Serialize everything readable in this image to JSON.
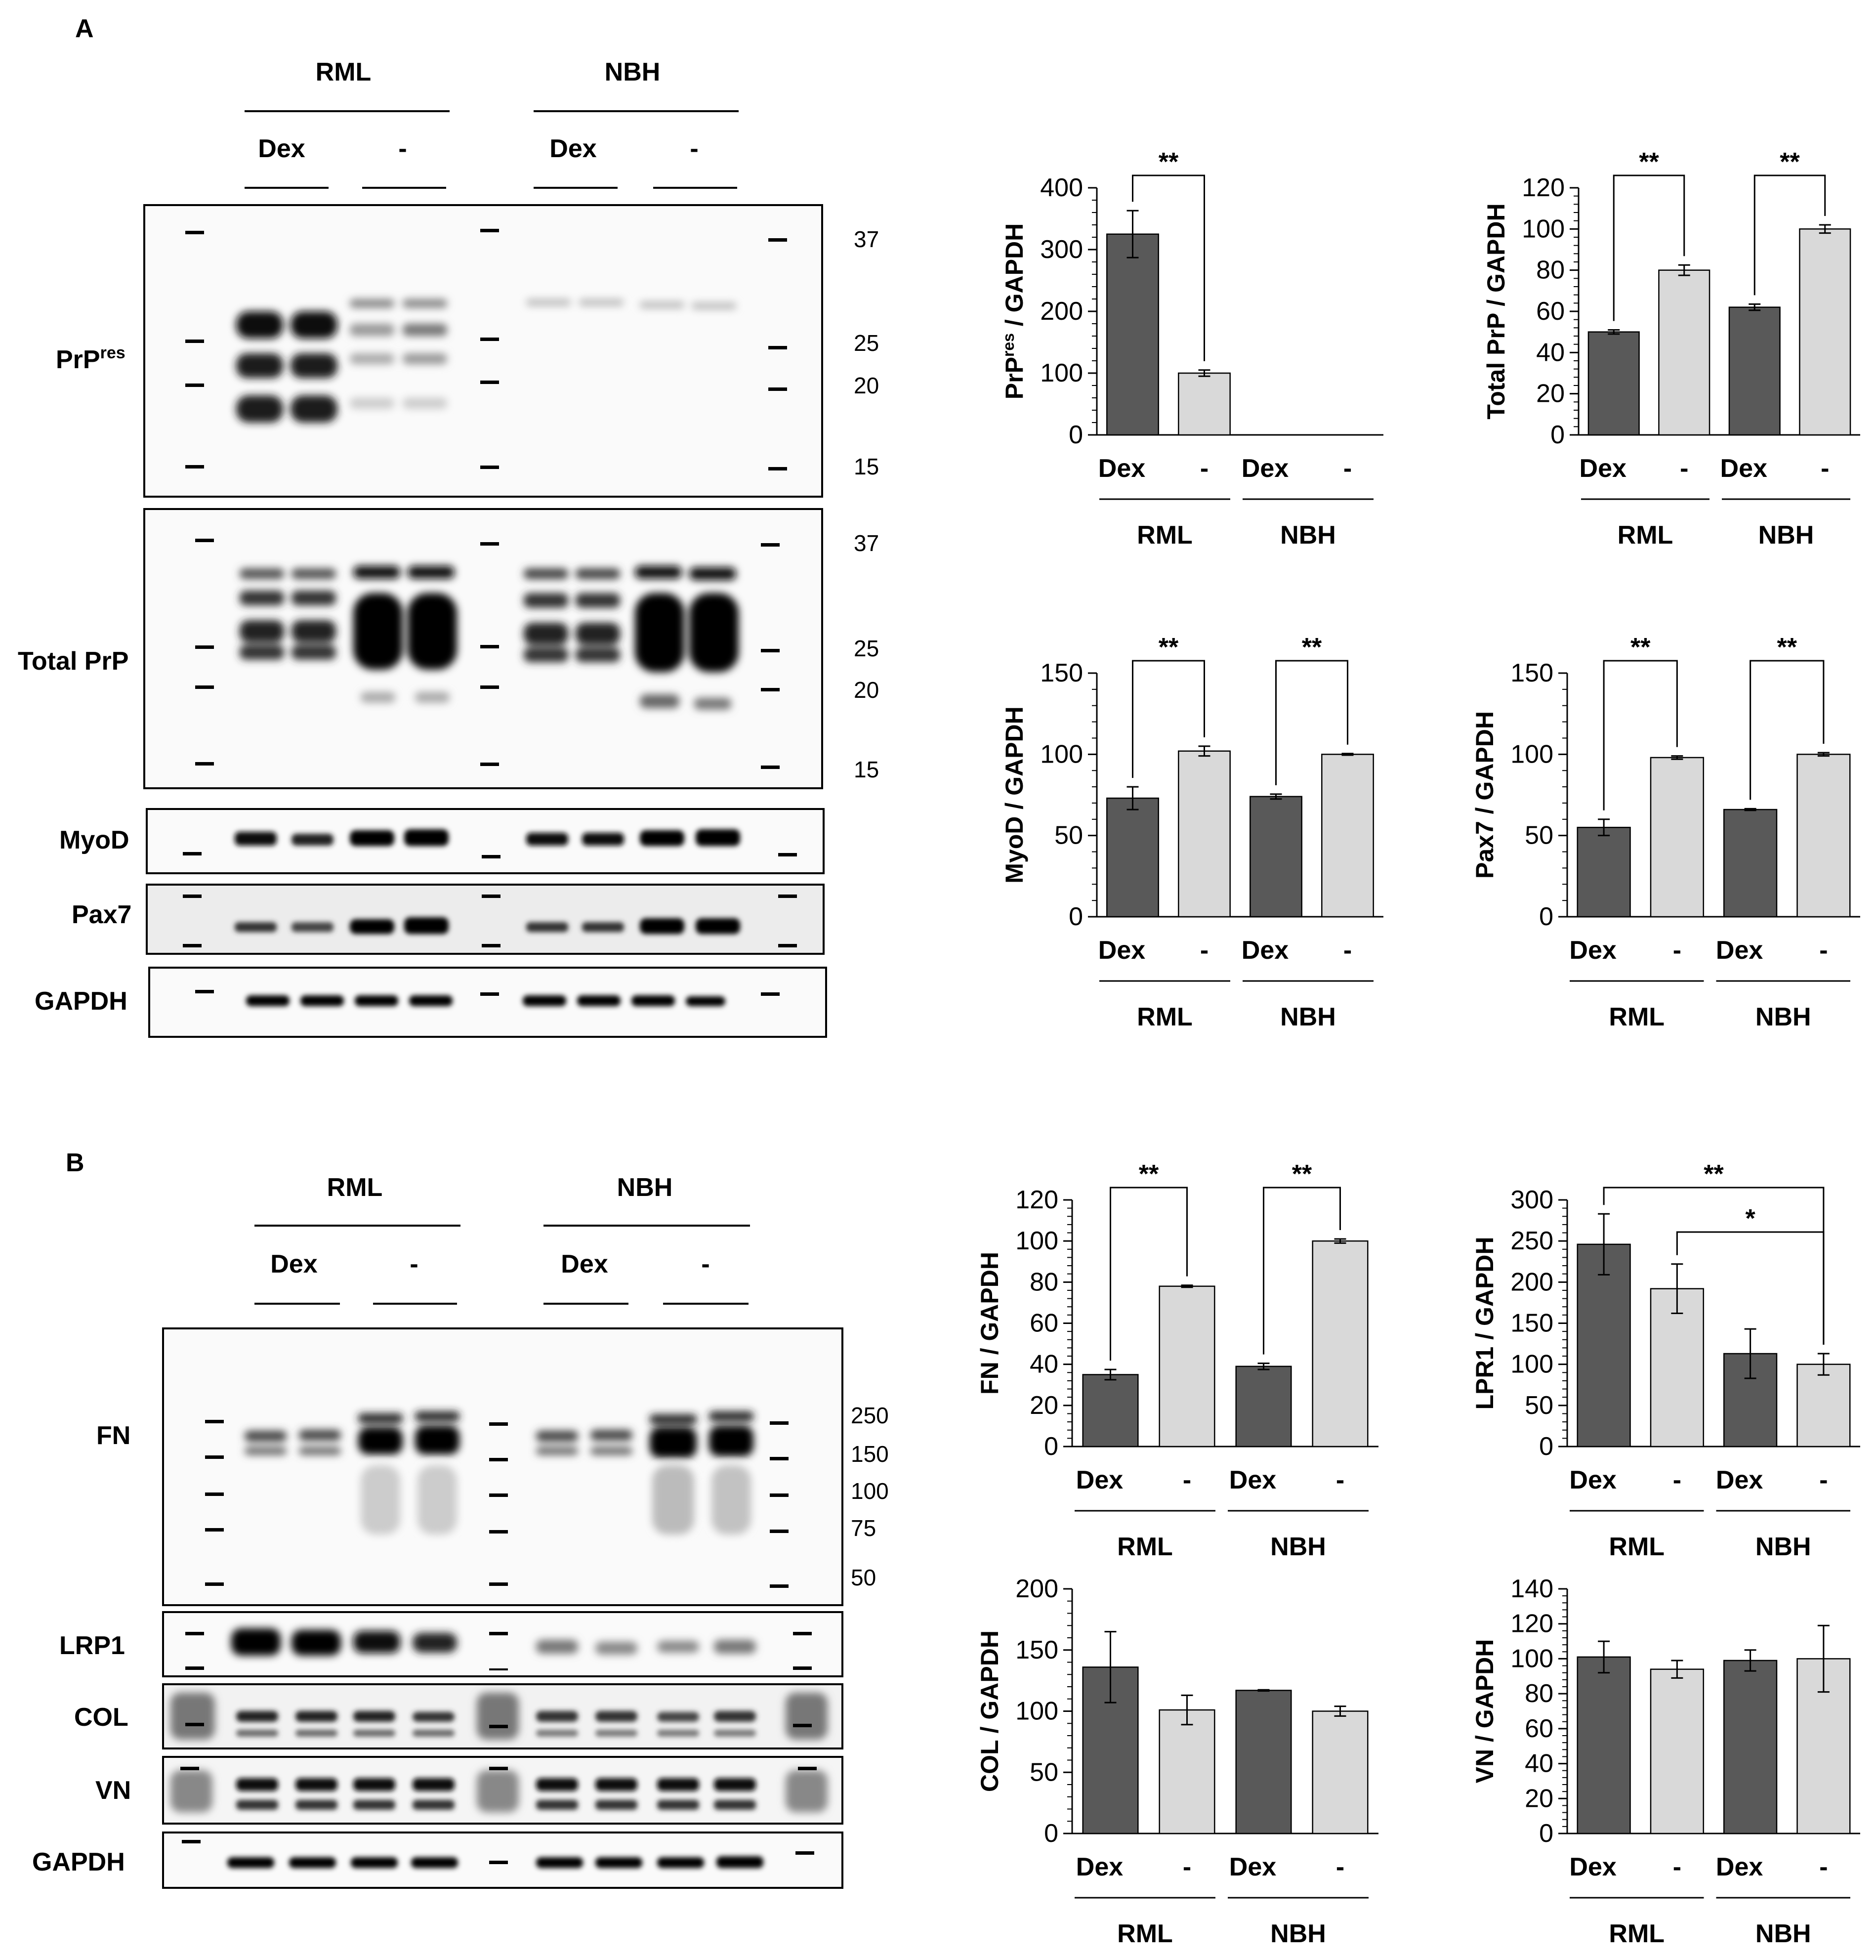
{
  "panels": {
    "A": {
      "label": "A",
      "groups": [
        "RML",
        "NBH"
      ],
      "treatments": [
        "Dex",
        "-"
      ],
      "blots": [
        {
          "label": "PrP",
          "label_sup": "res",
          "markers": [
            "37",
            "25",
            "20",
            "15"
          ]
        },
        {
          "label": "Total PrP",
          "markers": [
            "37",
            "25",
            "20",
            "15"
          ]
        },
        {
          "label": "MyoD",
          "markers": []
        },
        {
          "label": "Pax7",
          "markers": []
        },
        {
          "label": "GAPDH",
          "markers": []
        }
      ]
    },
    "B": {
      "label": "B",
      "groups": [
        "RML",
        "NBH"
      ],
      "treatments": [
        "Dex",
        "-"
      ],
      "blots": [
        {
          "label": "FN",
          "markers": [
            "250",
            "150",
            "100",
            "75",
            "50"
          ]
        },
        {
          "label": "LRP1",
          "markers": []
        },
        {
          "label": "COL",
          "markers": []
        },
        {
          "label": "VN",
          "markers": []
        },
        {
          "label": "GAPDH",
          "markers": []
        }
      ]
    }
  },
  "colors": {
    "dex_bar": "#595959",
    "ctrl_bar": "#d9d9d9",
    "ink": "#000000"
  },
  "chart_data": [
    {
      "type": "bar",
      "panel": "A",
      "ylabel": "PrP",
      "ylabel_sup": "res",
      "ylabel_tail": " / GAPDH",
      "categories": [
        "Dex",
        "-",
        "Dex",
        "-"
      ],
      "groups": [
        "RML",
        "NBH"
      ],
      "values": [
        325,
        100,
        0,
        0
      ],
      "errors": [
        38,
        5,
        0,
        0
      ],
      "ylim": [
        0,
        400
      ],
      "yticks": [
        0,
        100,
        200,
        300,
        400
      ],
      "ytick_labels": [
        "0",
        "100",
        "200",
        "300",
        "400"
      ],
      "significance": [
        {
          "from": 0,
          "to": 1,
          "label": "**"
        }
      ]
    },
    {
      "type": "bar",
      "panel": "A",
      "ylabel": "Total PrP / GAPDH",
      "categories": [
        "Dex",
        "-",
        "Dex",
        "-"
      ],
      "groups": [
        "RML",
        "NBH"
      ],
      "values": [
        50,
        80,
        62,
        100
      ],
      "errors": [
        1,
        2.5,
        1.5,
        2
      ],
      "ylim": [
        0,
        120
      ],
      "yticks": [
        0,
        20,
        40,
        60,
        80,
        100,
        120
      ],
      "ytick_labels": [
        "0",
        "20",
        "40",
        "60",
        "80",
        "100",
        "120"
      ],
      "significance": [
        {
          "from": 0,
          "to": 1,
          "label": "**"
        },
        {
          "from": 2,
          "to": 3,
          "label": "**"
        }
      ]
    },
    {
      "type": "bar",
      "panel": "A",
      "ylabel": "MyoD / GAPDH",
      "categories": [
        "Dex",
        "-",
        "Dex",
        "-"
      ],
      "groups": [
        "RML",
        "NBH"
      ],
      "values": [
        73,
        102,
        74,
        100
      ],
      "errors": [
        7,
        3,
        1.5,
        0.5
      ],
      "ylim": [
        0,
        150
      ],
      "yticks": [
        0,
        50,
        100,
        150
      ],
      "ytick_labels": [
        "0",
        "50",
        "100",
        "150"
      ],
      "significance": [
        {
          "from": 0,
          "to": 1,
          "label": "**"
        },
        {
          "from": 2,
          "to": 3,
          "label": "**"
        }
      ]
    },
    {
      "type": "bar",
      "panel": "A",
      "ylabel": "Pax7 / GAPDH",
      "categories": [
        "Dex",
        "-",
        "Dex",
        "-"
      ],
      "groups": [
        "RML",
        "NBH"
      ],
      "values": [
        55,
        98,
        66,
        100
      ],
      "errors": [
        5,
        1,
        0.5,
        1
      ],
      "ylim": [
        0,
        150
      ],
      "yticks": [
        0,
        50,
        100,
        150
      ],
      "ytick_labels": [
        "0",
        "50",
        "100",
        "150"
      ],
      "significance": [
        {
          "from": 0,
          "to": 1,
          "label": "**"
        },
        {
          "from": 2,
          "to": 3,
          "label": "**"
        }
      ]
    },
    {
      "type": "bar",
      "panel": "B",
      "ylabel": "FN / GAPDH",
      "categories": [
        "Dex",
        "-",
        "Dex",
        "-"
      ],
      "groups": [
        "RML",
        "NBH"
      ],
      "values": [
        35,
        78,
        39,
        100
      ],
      "errors": [
        2.5,
        0.5,
        1.5,
        1
      ],
      "ylim": [
        0,
        120
      ],
      "yticks": [
        0,
        20,
        40,
        60,
        80,
        100,
        120
      ],
      "ytick_labels": [
        "0",
        "20",
        "40",
        "60",
        "80",
        "100",
        "120"
      ],
      "significance": [
        {
          "from": 0,
          "to": 1,
          "label": "**"
        },
        {
          "from": 2,
          "to": 3,
          "label": "**"
        }
      ]
    },
    {
      "type": "bar",
      "panel": "B",
      "ylabel": "LPR1 / GAPDH",
      "categories": [
        "Dex",
        "-",
        "Dex",
        "-"
      ],
      "groups": [
        "RML",
        "NBH"
      ],
      "values": [
        246,
        192,
        113,
        100
      ],
      "errors": [
        37,
        30,
        30,
        13
      ],
      "ylim": [
        0,
        300
      ],
      "yticks": [
        0,
        50,
        100,
        150,
        200,
        250,
        300
      ],
      "ytick_labels": [
        "0",
        "50",
        "100",
        "150",
        "200",
        "250",
        "300"
      ],
      "significance": [
        {
          "from": 0,
          "to": 3,
          "label": "**"
        },
        {
          "from": 1,
          "to": 3,
          "label": "*"
        }
      ]
    },
    {
      "type": "bar",
      "panel": "B",
      "ylabel": "COL / GAPDH",
      "categories": [
        "Dex",
        "-",
        "Dex",
        "-"
      ],
      "groups": [
        "RML",
        "NBH"
      ],
      "values": [
        136,
        101,
        117,
        100
      ],
      "errors": [
        29,
        12,
        0.5,
        4
      ],
      "ylim": [
        0,
        200
      ],
      "yticks": [
        0,
        50,
        100,
        150,
        200
      ],
      "ytick_labels": [
        "0",
        "50",
        "100",
        "150",
        "200"
      ],
      "significance": []
    },
    {
      "type": "bar",
      "panel": "B",
      "ylabel": "VN / GAPDH",
      "categories": [
        "Dex",
        "-",
        "Dex",
        "-"
      ],
      "groups": [
        "RML",
        "NBH"
      ],
      "values": [
        101,
        94,
        99,
        100
      ],
      "errors": [
        9,
        5,
        6,
        19
      ],
      "ylim": [
        0,
        140
      ],
      "yticks": [
        0,
        20,
        40,
        60,
        80,
        100,
        120,
        140
      ],
      "ytick_labels": [
        "0",
        "20",
        "40",
        "60",
        "80",
        "100",
        "120",
        "140"
      ],
      "significance": []
    }
  ]
}
